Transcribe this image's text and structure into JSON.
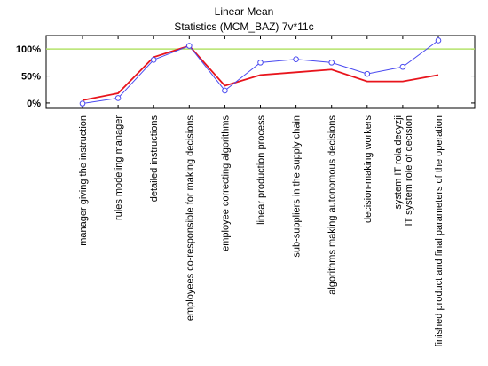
{
  "chart_data": {
    "type": "line",
    "title": "Linear Mean",
    "subtitle": "Statistics (MCM_BAZ) 7v*11c",
    "categories": [
      "manager giving the instruction",
      "rules modeling manager",
      "detailed instructions",
      "employees co-responsible for making decisions",
      "employee correcting algorithms",
      "linear production process",
      "sub-suppliers in the supply chain",
      "algorithms making autonomous decisions",
      "decision-making workers",
      "system IT rola decyzji\nIT system role of decision",
      "finished product and final parameters of the operation"
    ],
    "series": [
      {
        "values": [
          5,
          18,
          85,
          106,
          32,
          52,
          57,
          62,
          40,
          40,
          52
        ],
        "color": "#e8141c",
        "marker": "none"
      },
      {
        "values": [
          -1,
          9,
          80,
          106,
          23,
          75,
          81,
          75,
          54,
          67,
          116
        ],
        "color": "#4a4af0",
        "marker": "circle"
      }
    ],
    "reference_line": {
      "value": 100,
      "color": "#b4e36b"
    },
    "y_ticks": [
      {
        "value": 100,
        "label": "100%"
      },
      {
        "value": 50,
        "label": "50%"
      },
      {
        "value": 0,
        "label": "0%"
      }
    ],
    "ylim": [
      -10,
      125
    ],
    "xlabel": "",
    "ylabel": "",
    "grid": false,
    "legend": "none"
  }
}
